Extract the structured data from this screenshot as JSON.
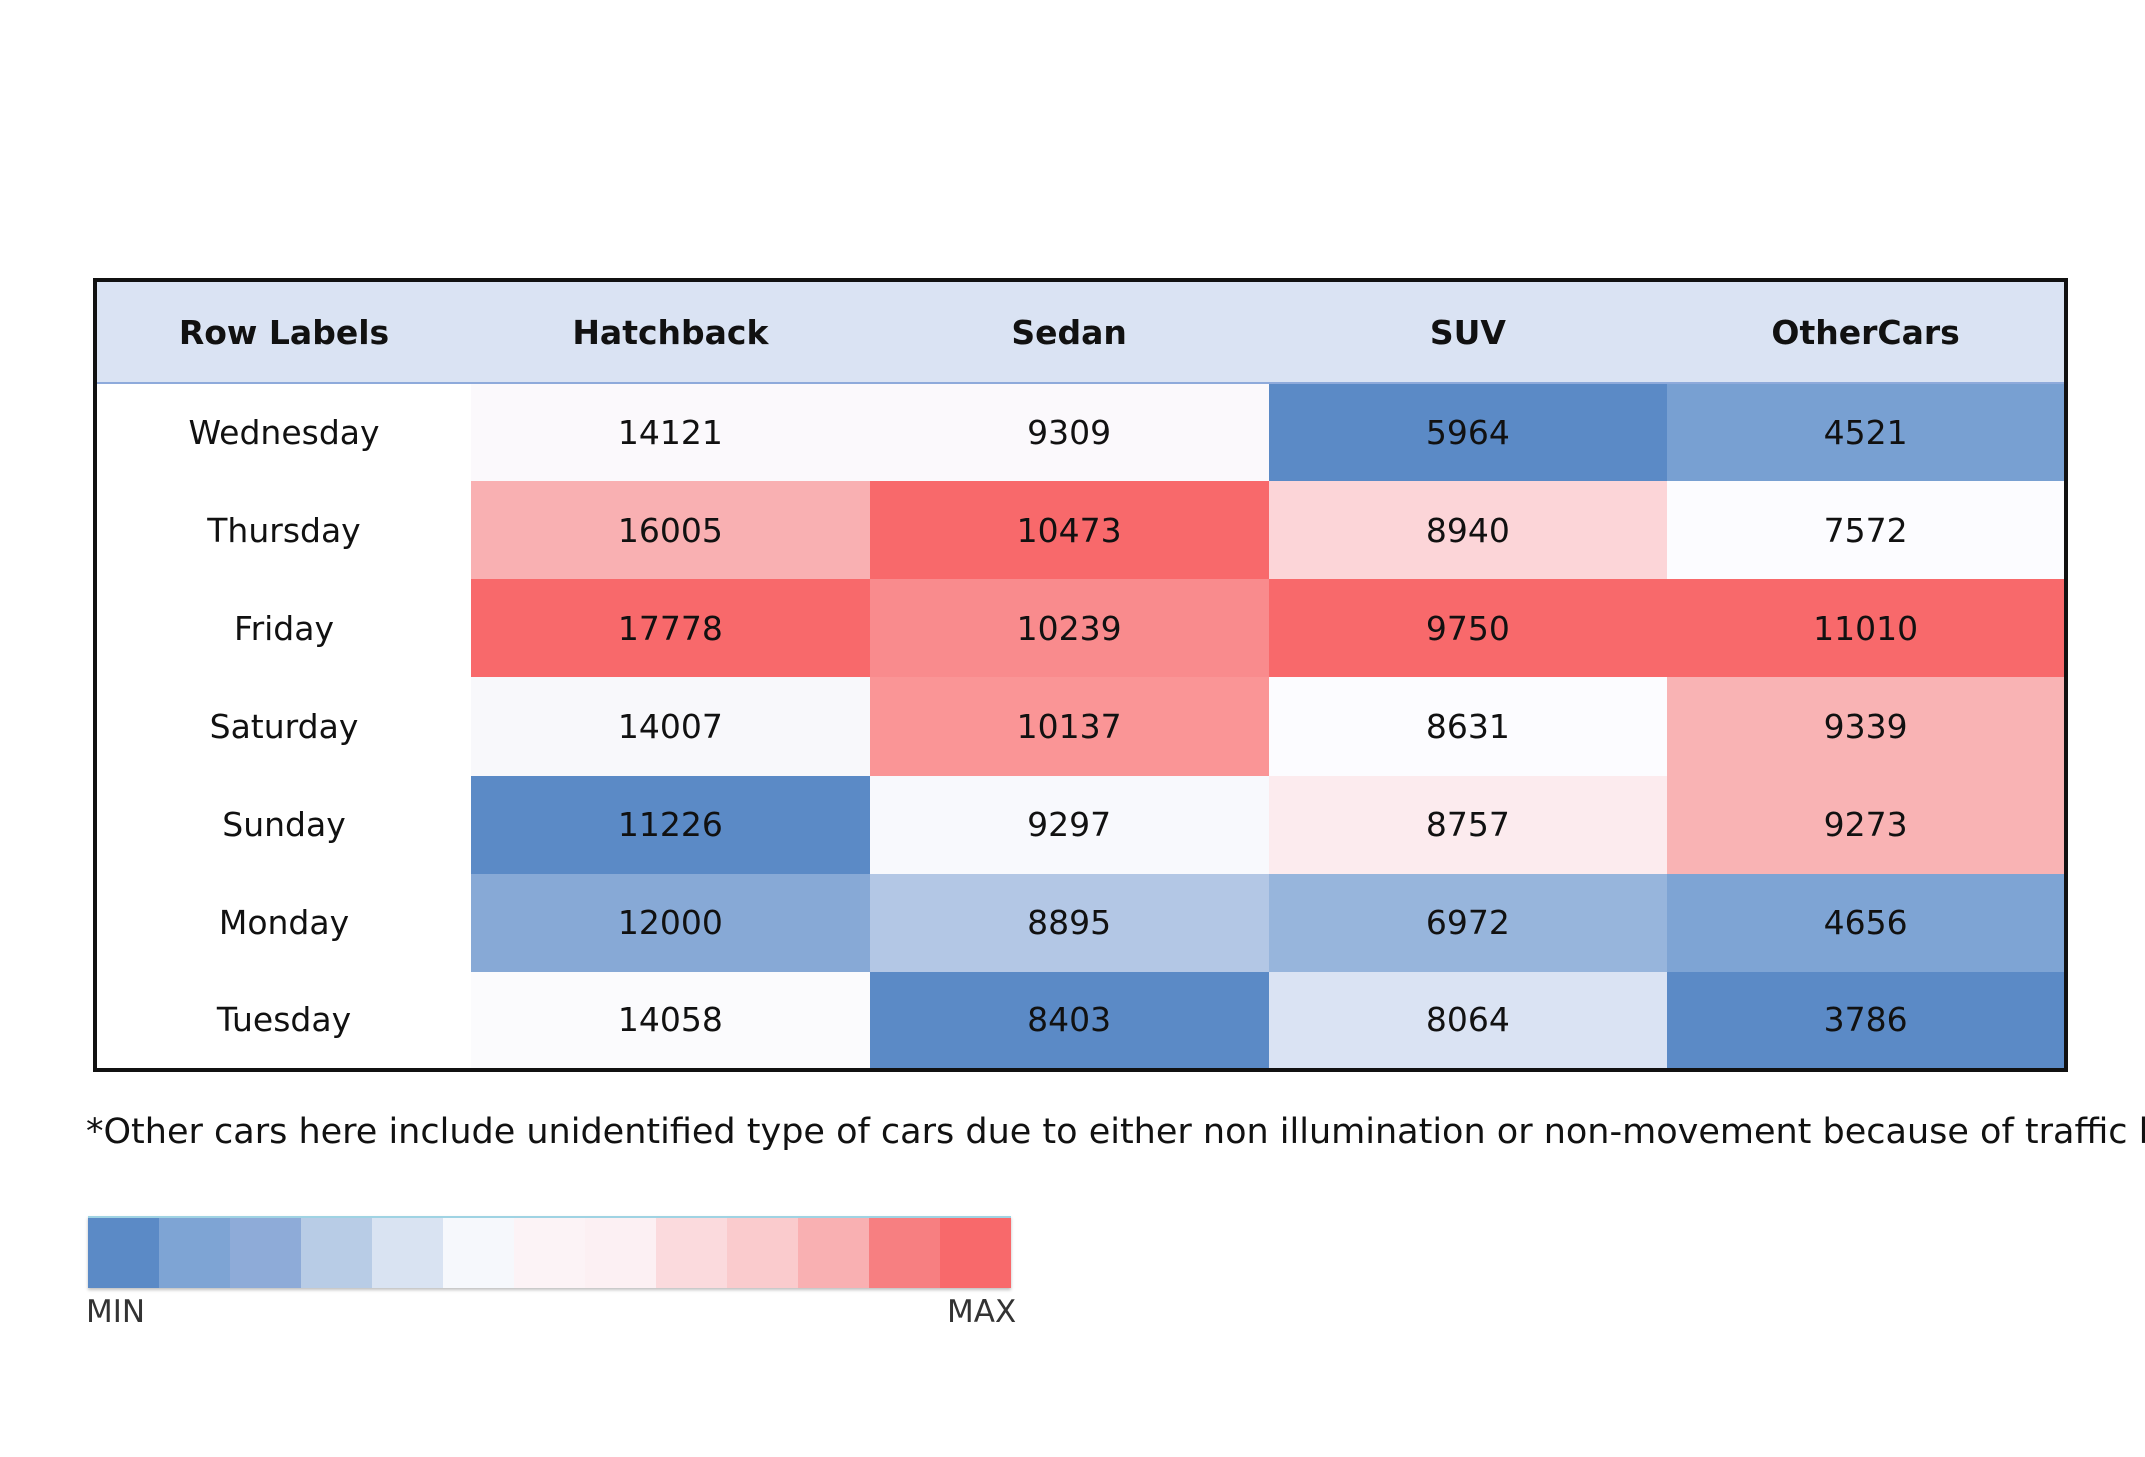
{
  "chart_data": {
    "type": "heatmap",
    "corner_label": "Row Labels",
    "columns": [
      "Hatchback",
      "Sedan",
      "SUV",
      "OtherCars"
    ],
    "rows": [
      "Wednesday",
      "Thursday",
      "Friday",
      "Saturday",
      "Sunday",
      "Monday",
      "Tuesday"
    ],
    "values": [
      [
        14121,
        9309,
        5964,
        4521
      ],
      [
        16005,
        10473,
        8940,
        7572
      ],
      [
        17778,
        10239,
        9750,
        11010
      ],
      [
        14007,
        10137,
        8631,
        9339
      ],
      [
        11226,
        9297,
        8757,
        9273
      ],
      [
        12000,
        8895,
        6972,
        4656
      ],
      [
        14058,
        8403,
        8064,
        3786
      ]
    ],
    "cell_colors": [
      [
        "#fbf9fc",
        "#fbf9fc",
        "#5b8ac6",
        "#78a0d2"
      ],
      [
        "#f9b0b2",
        "#f8696b",
        "#fcd5d8",
        "#fcfcff"
      ],
      [
        "#f8696b",
        "#f98b8d",
        "#f8696b",
        "#f8696b"
      ],
      [
        "#f8f8fb",
        "#fa9596",
        "#fcfcff",
        "#f9b3b4"
      ],
      [
        "#5b8ac6",
        "#f8f9fd",
        "#fcebee",
        "#f9b3b4"
      ],
      [
        "#87a9d6",
        "#b3c7e5",
        "#97b5dc",
        "#7ea4d4"
      ],
      [
        "#fbfbfd",
        "#5b8ac6",
        "#dae3f3",
        "#5b8ac6"
      ]
    ],
    "footnote": "*Other cars here include unidentified type of cars due to either non illumination or non-movement because of traffic light.",
    "scale": {
      "min_label": "MIN",
      "max_label": "MAX",
      "colors": [
        "#5b8ac6",
        "#7ea4d4",
        "#8eabd8",
        "#b8cce6",
        "#d9e3f2",
        "#f6f8fc",
        "#fcf3f6",
        "#fcf0f3",
        "#fbdadd",
        "#facbcd",
        "#f9b0b2",
        "#f77f81",
        "#f8696b"
      ]
    },
    "grid": false
  }
}
